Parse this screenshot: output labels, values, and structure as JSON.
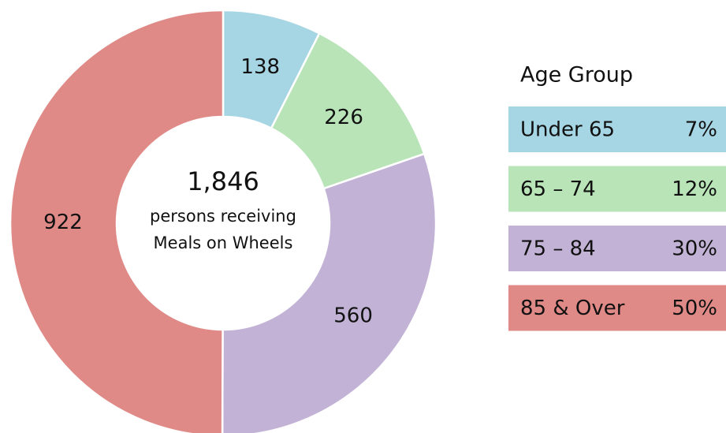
{
  "chart_data": {
    "type": "donut",
    "categories": [
      "Under 65",
      "65 – 74",
      "75 – 84",
      "85 & Over"
    ],
    "values": [
      138,
      226,
      560,
      922
    ],
    "colors": [
      "#a6d5e3",
      "#b8e4b8",
      "#c2b3d6",
      "#e08a87"
    ],
    "shares": [
      "7%",
      "12%",
      "30%",
      "50%"
    ],
    "legend_title": "Age Group",
    "center_value": "1,846",
    "center_label": [
      "persons receiving",
      "Meals on Wheels"
    ]
  }
}
